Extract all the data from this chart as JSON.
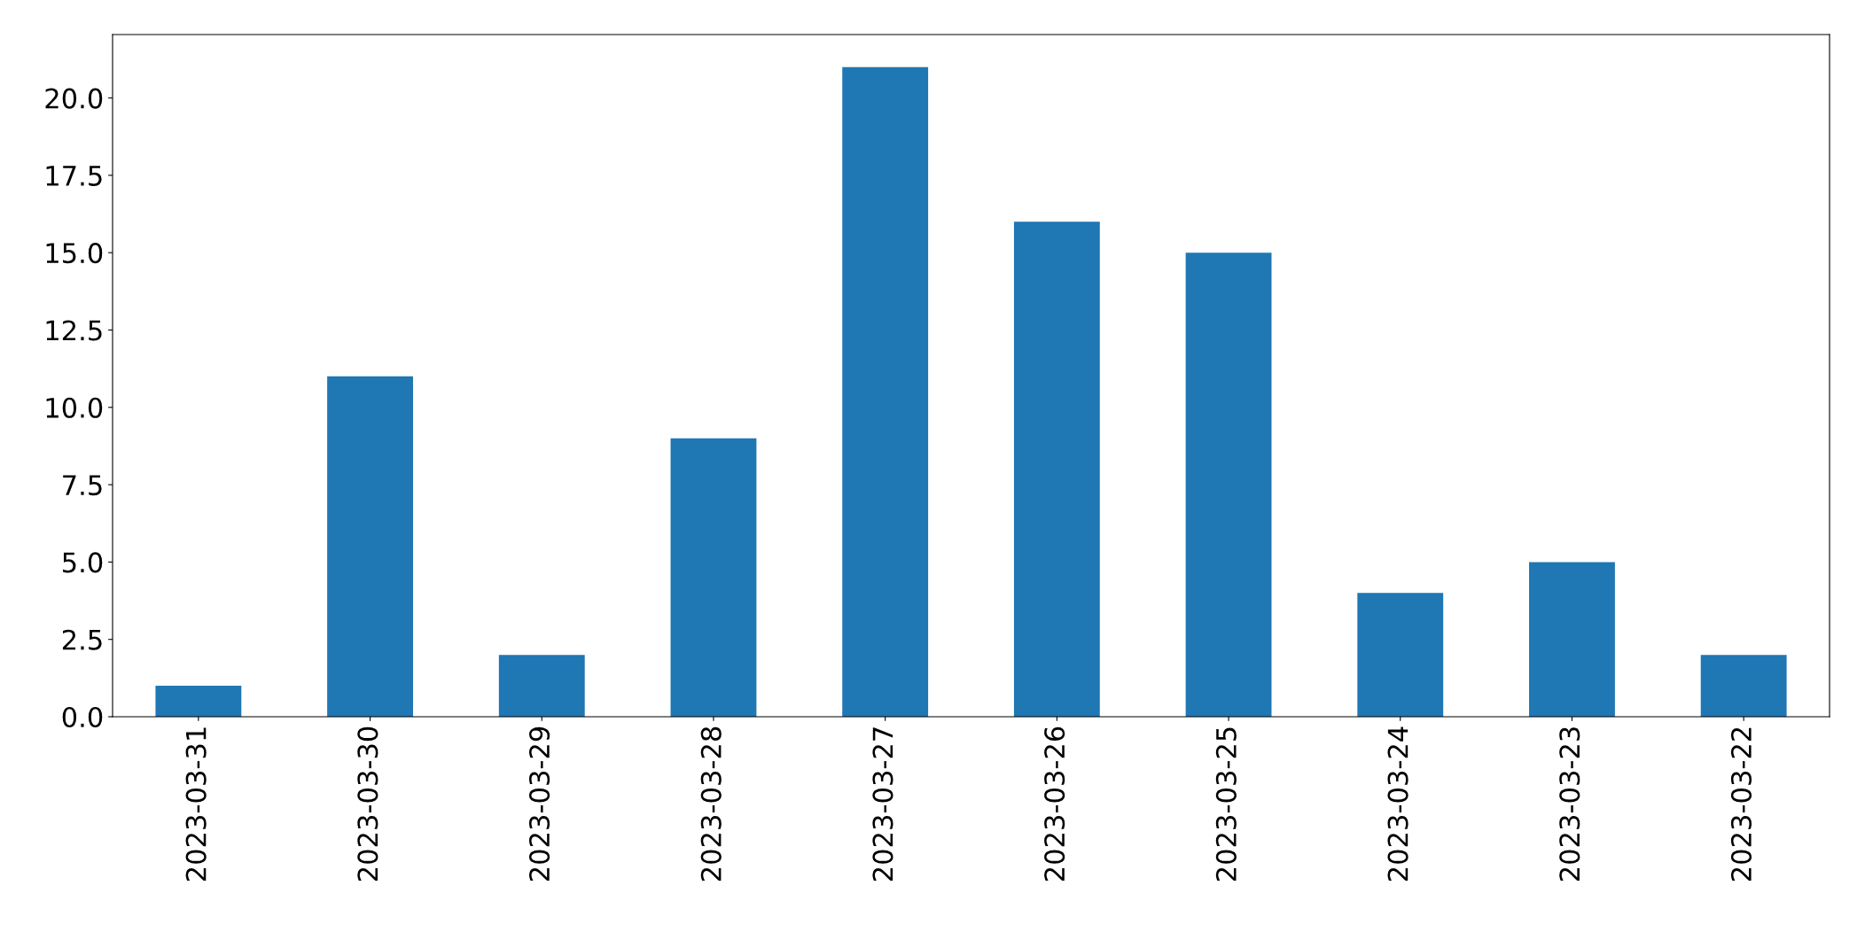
{
  "chart_data": {
    "type": "bar",
    "categories": [
      "2023-03-31",
      "2023-03-30",
      "2023-03-29",
      "2023-03-28",
      "2023-03-27",
      "2023-03-26",
      "2023-03-25",
      "2023-03-24",
      "2023-03-23",
      "2023-03-22"
    ],
    "values": [
      1,
      11,
      2,
      9,
      21,
      16,
      15,
      4,
      5,
      2
    ],
    "color": "#1f77b4",
    "ylim": [
      0,
      22.05
    ],
    "yticks": [
      {
        "value": 0,
        "label": "0.0"
      },
      {
        "value": 2.5,
        "label": "2.5"
      },
      {
        "value": 5,
        "label": "5.0"
      },
      {
        "value": 7.5,
        "label": "7.5"
      },
      {
        "value": 10,
        "label": "10.0"
      },
      {
        "value": 12.5,
        "label": "12.5"
      },
      {
        "value": 15,
        "label": "15.0"
      },
      {
        "value": 17.5,
        "label": "17.5"
      },
      {
        "value": 20,
        "label": "20.0"
      }
    ],
    "grid": false
  }
}
